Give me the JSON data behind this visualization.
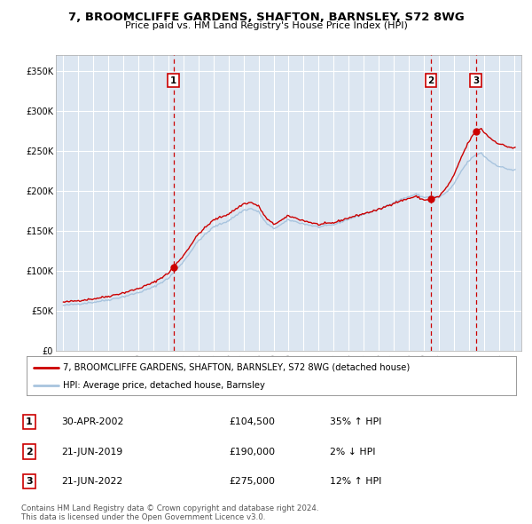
{
  "title": "7, BROOMCLIFFE GARDENS, SHAFTON, BARNSLEY, S72 8WG",
  "subtitle": "Price paid vs. HM Land Registry's House Price Index (HPI)",
  "bg_color": "#dce6f1",
  "plot_bg_color": "#dce6f1",
  "grid_color": "#ffffff",
  "hpi_color": "#a8c4de",
  "price_color": "#cc0000",
  "sales": [
    {
      "num": 1,
      "date_x": 2002.33,
      "price": 104500,
      "label": "1"
    },
    {
      "num": 2,
      "date_x": 2019.47,
      "price": 190000,
      "label": "2"
    },
    {
      "num": 3,
      "date_x": 2022.47,
      "price": 275000,
      "label": "3"
    }
  ],
  "legend_entries": [
    "7, BROOMCLIFFE GARDENS, SHAFTON, BARNSLEY, S72 8WG (detached house)",
    "HPI: Average price, detached house, Barnsley"
  ],
  "table_rows": [
    [
      "1",
      "30-APR-2002",
      "£104,500",
      "35% ↑ HPI"
    ],
    [
      "2",
      "21-JUN-2019",
      "£190,000",
      "2% ↓ HPI"
    ],
    [
      "3",
      "21-JUN-2022",
      "£275,000",
      "12% ↑ HPI"
    ]
  ],
  "footer": "Contains HM Land Registry data © Crown copyright and database right 2024.\nThis data is licensed under the Open Government Licence v3.0.",
  "ylim": [
    0,
    370000
  ],
  "xlim": [
    1994.5,
    2025.5
  ],
  "yticks": [
    0,
    50000,
    100000,
    150000,
    200000,
    250000,
    300000,
    350000
  ],
  "ytick_labels": [
    "£0",
    "£50K",
    "£100K",
    "£150K",
    "£200K",
    "£250K",
    "£300K",
    "£350K"
  ],
  "xticks": [
    1995,
    1996,
    1997,
    1998,
    1999,
    2000,
    2001,
    2002,
    2003,
    2004,
    2005,
    2006,
    2007,
    2008,
    2009,
    2010,
    2011,
    2012,
    2013,
    2014,
    2015,
    2016,
    2017,
    2018,
    2019,
    2020,
    2021,
    2022,
    2023,
    2024,
    2025
  ]
}
